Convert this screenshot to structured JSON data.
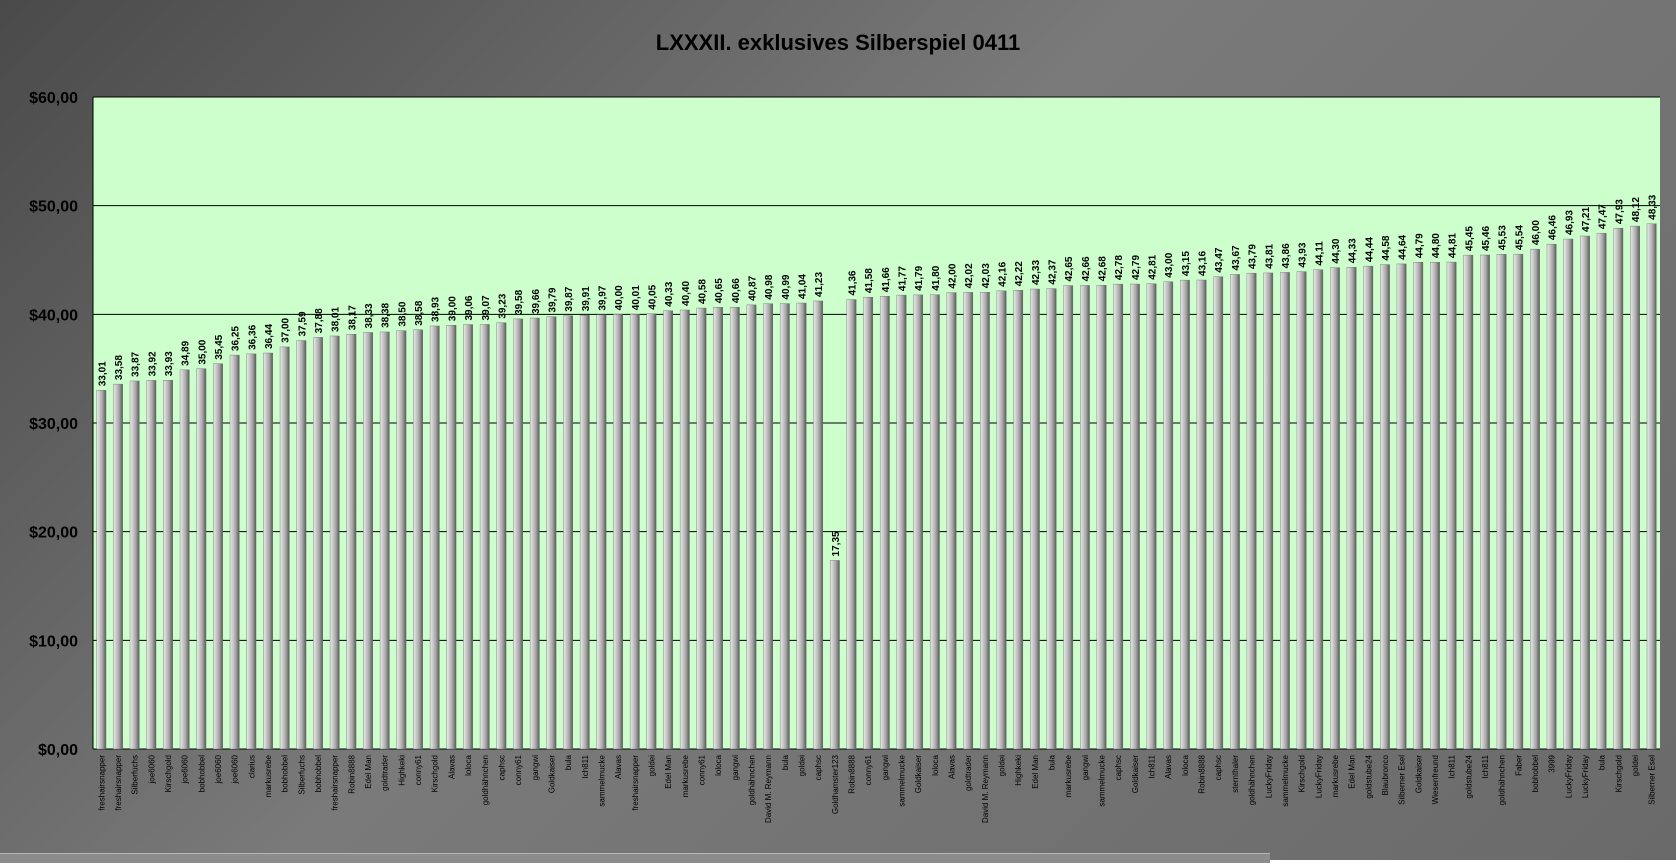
{
  "chart_data": {
    "type": "bar",
    "title": "LXXXII. exklusives Silberspiel 0411",
    "xlabel": "",
    "ylabel": "",
    "ylim": [
      0,
      60
    ],
    "yticks": [
      "$0,00",
      "$10,00",
      "$20,00",
      "$30,00",
      "$40,00",
      "$50,00",
      "$60,00"
    ],
    "grid": true,
    "legend": "none",
    "colors": {
      "plot_bg": "#ccffcc",
      "bar": "#a8a8a8",
      "bar_shade": "#5a5a5a",
      "frame": "#5f5f5f",
      "grid": "#000000"
    },
    "categories": [
      "freshairsnapper",
      "freshairsnapper",
      "Silberfuchs",
      "joe6060",
      "Kirschgold",
      "joe6060",
      "bobhobbel",
      "joe6060",
      "joe6060",
      "clarius",
      "markusrebe",
      "bobhobbel",
      "Silberfuchs",
      "bobhobbel",
      "freshairsnapper",
      "Robin8888",
      "Edel Man",
      "goldtrader",
      "Highkeki",
      "conny61",
      "Kirschgold",
      "Alavas",
      "loloca",
      "goldhähnchen",
      "caphsc",
      "conny61",
      "gangwi",
      "Goldkaiser",
      "bula",
      "Ich811",
      "sammelmucke",
      "Alavas",
      "freshairsnapper",
      "goldei",
      "Edel Man",
      "markusrebe",
      "conny61",
      "loloca",
      "gangwi",
      "goldhähnchen",
      "David M. Reymann",
      "bula",
      "goldei",
      "caphsc",
      "Goldhamster123",
      "Robin8888",
      "conny61",
      "gangwi",
      "sammelmucke",
      "Goldkaiser",
      "loloca",
      "Alavas",
      "goldtrader",
      "David M. Reymann",
      "goldei",
      "Highkeki",
      "Edel Man",
      "bula",
      "markusrebe",
      "gangwi",
      "sammelmucke",
      "caphsc",
      "Goldkaiser",
      "Ich811",
      "Alavas",
      "loloca",
      "Robin8888",
      "caphsc",
      "sternthaler",
      "goldhähnchen",
      "LuckyFriday",
      "sammelmucke",
      "Kirschgold",
      "LuckyFriday",
      "markusrebe",
      "Edel Man",
      "goldstube24",
      "Blaubronco",
      "Silberner Esel",
      "Goldkaiser",
      "Wiesenfreund",
      "Ich811",
      "goldstube24",
      "Ich811",
      "goldhähnchen",
      "Faber",
      "bobhobbel",
      "3999",
      "LuckyFriday",
      "LuckyFriday",
      "bula",
      "Kirschgold",
      "goldei",
      "Silberner Esel"
    ],
    "values": [
      33.01,
      33.58,
      33.87,
      33.92,
      33.93,
      34.89,
      35.0,
      35.45,
      36.25,
      36.36,
      36.44,
      37.0,
      37.59,
      37.88,
      38.01,
      38.17,
      38.33,
      38.38,
      38.5,
      38.58,
      38.93,
      39.0,
      39.06,
      39.07,
      39.23,
      39.58,
      39.66,
      39.79,
      39.87,
      39.91,
      39.97,
      40.0,
      40.01,
      40.05,
      40.33,
      40.4,
      40.58,
      40.65,
      40.66,
      40.87,
      40.98,
      40.99,
      41.04,
      41.23,
      17.35,
      41.36,
      41.58,
      41.66,
      41.77,
      41.79,
      41.8,
      42.0,
      42.02,
      42.03,
      42.16,
      42.22,
      42.33,
      42.37,
      42.65,
      42.66,
      42.68,
      42.78,
      42.79,
      42.81,
      43.0,
      43.15,
      43.16,
      43.47,
      43.67,
      43.79,
      43.81,
      43.86,
      43.93,
      44.11,
      44.3,
      44.33,
      44.44,
      44.58,
      44.64,
      44.79,
      44.8,
      44.81,
      45.45,
      45.46,
      45.53,
      45.54,
      46.0,
      46.46,
      46.93,
      47.21,
      47.47,
      47.93,
      48.12,
      48.33
    ],
    "labels": [
      "33,01",
      "33,58",
      "33,87",
      "33,92",
      "33,93",
      "34,89",
      "35,00",
      "35,45",
      "36,25",
      "36,36",
      "36,44",
      "37,00",
      "37,59",
      "37,88",
      "38,01",
      "38,17",
      "38,33",
      "38,38",
      "38,50",
      "38,58",
      "38,93",
      "39,00",
      "39,06",
      "39,07",
      "39,23",
      "39,58",
      "39,66",
      "39,79",
      "39,87",
      "39,91",
      "39,97",
      "40,00",
      "40,01",
      "40,05",
      "40,33",
      "40,40",
      "40,58",
      "40,65",
      "40,66",
      "40,87",
      "40,98",
      "40,99",
      "41,04",
      "41,23",
      "17,35",
      "41,36",
      "41,58",
      "41,66",
      "41,77",
      "41,79",
      "41,80",
      "42,00",
      "42,02",
      "42,03",
      "42,16",
      "42,22",
      "42,33",
      "42,37",
      "42,65",
      "42,66",
      "42,68",
      "42,78",
      "42,79",
      "42,81",
      "43,00",
      "43,15",
      "43,16",
      "43,47",
      "43,67",
      "43,79",
      "43,81",
      "43,86",
      "43,93",
      "44,11",
      "44,30",
      "44,33",
      "44,44",
      "44,58",
      "44,64",
      "44,79",
      "44,80",
      "44,81",
      "45,45",
      "45,46",
      "45,53",
      "45,54",
      "46,00",
      "46,46",
      "46,93",
      "47,21",
      "47,47",
      "47,93",
      "48,12",
      "48,33"
    ]
  }
}
